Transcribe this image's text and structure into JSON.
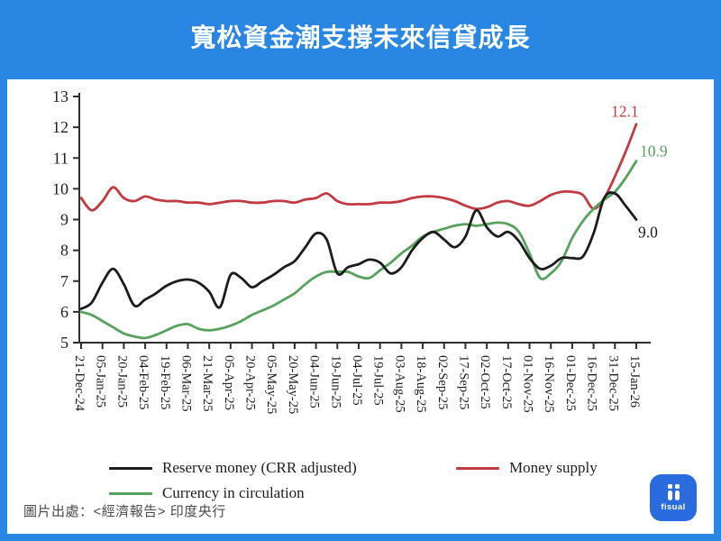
{
  "title": "寬松資金潮支撐未來信貸成長",
  "source_note": "圖片出處：<經濟報告> 印度央行",
  "logo": {
    "text": "fisual"
  },
  "colors": {
    "frame_blue": "#2986e2",
    "panel": "#ffffff",
    "axis": "#2e2e2e",
    "tick_text": "#1f1f1f",
    "black_line": "#1c1c1c",
    "red_line": "#c13b42",
    "green_line": "#57a25c"
  },
  "legend": [
    {
      "label": "Reserve money (CRR adjusted)",
      "color": "#1c1c1c"
    },
    {
      "label": "Money supply",
      "color": "#c13b42"
    },
    {
      "label": "Currency in circulation",
      "color": "#57a25c"
    }
  ],
  "chart_data": {
    "type": "line",
    "title": "",
    "xlabel": "",
    "ylabel": "",
    "ylim": [
      5,
      13
    ],
    "y_ticks": [
      5,
      6,
      7,
      8,
      9,
      10,
      11,
      12,
      13
    ],
    "grid": false,
    "legend_position": "bottom",
    "x_tick_labels": [
      "21-Dec-24",
      "05-Jan-25",
      "20-Jan-25",
      "04-Feb-25",
      "19-Feb-25",
      "06-Mar-25",
      "21-Mar-25",
      "05-Apr-25",
      "20-Apr-25",
      "05-May-25",
      "20-May-25",
      "04-Jun-25",
      "19-Jun-25",
      "04-Jul-25",
      "19-Jul-25",
      "03-Aug-25",
      "18-Aug-25",
      "02-Sep-25",
      "17-Sep-25",
      "02-Oct-25",
      "17-Oct-25",
      "01-Nov-25",
      "16-Nov-25",
      "01-Dec-25",
      "16-Dec-25",
      "31-Dec-25",
      "15-Jan-26"
    ],
    "samples_per_tick_interval": 2,
    "series": [
      {
        "name": "Reserve money (CRR adjusted)",
        "color": "#1c1c1c",
        "end_label": "9.0",
        "values": [
          6.1,
          6.3,
          6.95,
          7.4,
          6.9,
          6.2,
          6.4,
          6.6,
          6.85,
          7.0,
          7.05,
          6.95,
          6.65,
          6.15,
          7.2,
          7.1,
          6.8,
          7.0,
          7.2,
          7.45,
          7.65,
          8.1,
          8.55,
          8.35,
          7.25,
          7.45,
          7.55,
          7.7,
          7.6,
          7.25,
          7.45,
          8.0,
          8.4,
          8.6,
          8.35,
          8.1,
          8.45,
          9.3,
          8.75,
          8.45,
          8.6,
          8.3,
          7.75,
          7.4,
          7.5,
          7.75,
          7.75,
          7.8,
          8.55,
          9.7,
          9.85,
          9.45,
          9.0
        ]
      },
      {
        "name": "Money supply",
        "color": "#c13b42",
        "end_label": "12.1",
        "values": [
          9.7,
          9.3,
          9.6,
          10.05,
          9.7,
          9.6,
          9.75,
          9.65,
          9.6,
          9.6,
          9.55,
          9.55,
          9.5,
          9.55,
          9.6,
          9.6,
          9.55,
          9.55,
          9.6,
          9.6,
          9.55,
          9.65,
          9.7,
          9.85,
          9.6,
          9.5,
          9.5,
          9.5,
          9.55,
          9.55,
          9.6,
          9.7,
          9.75,
          9.75,
          9.7,
          9.6,
          9.45,
          9.35,
          9.4,
          9.55,
          9.6,
          9.5,
          9.45,
          9.6,
          9.8,
          9.9,
          9.9,
          9.8,
          9.35,
          9.7,
          10.4,
          11.2,
          12.1
        ]
      },
      {
        "name": "Currency in circulation",
        "color": "#57a25c",
        "end_label": "10.9",
        "values": [
          6.0,
          5.9,
          5.7,
          5.5,
          5.3,
          5.2,
          5.15,
          5.25,
          5.4,
          5.55,
          5.6,
          5.45,
          5.4,
          5.45,
          5.55,
          5.7,
          5.9,
          6.05,
          6.2,
          6.4,
          6.6,
          6.9,
          7.15,
          7.3,
          7.3,
          7.3,
          7.15,
          7.1,
          7.35,
          7.6,
          7.9,
          8.15,
          8.45,
          8.6,
          8.7,
          8.8,
          8.85,
          8.8,
          8.85,
          8.9,
          8.85,
          8.6,
          7.9,
          7.1,
          7.25,
          7.65,
          8.4,
          8.95,
          9.35,
          9.65,
          9.9,
          10.35,
          10.9
        ]
      }
    ]
  }
}
